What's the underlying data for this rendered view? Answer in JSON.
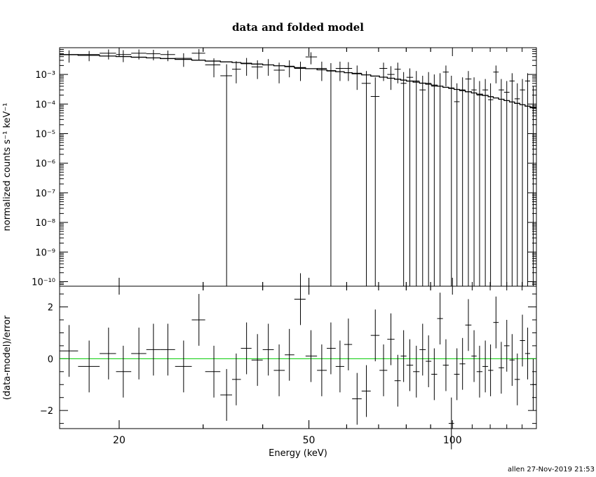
{
  "chart_data": [
    {
      "type": "scatter",
      "title": "data and folded model",
      "xlabel": "",
      "ylabel": "normalized counts s⁻¹ keV⁻¹",
      "xscale": "log",
      "yscale": "log",
      "xlim": [
        15,
        150
      ],
      "ylim": [
        7e-11,
        0.008
      ],
      "y_tick_labels": [
        "10⁻³",
        "10⁻⁴",
        "10⁻⁵",
        "10⁻⁶",
        "10⁻⁷",
        "10⁻⁸",
        "10⁻⁹",
        "10⁻¹⁰"
      ],
      "y_tick_values": [
        0.001,
        0.0001,
        1e-05,
        1e-06,
        1e-07,
        1e-08,
        1e-09,
        1e-10
      ],
      "grid": false,
      "series": [
        {
          "kind": "data",
          "points": [
            {
              "x": 15.7,
              "xlo": 15.0,
              "xhi": 16.4,
              "y": 0.0047,
              "ylo": 0.0025,
              "yhi": 0.0065
            },
            {
              "x": 17.3,
              "xlo": 16.4,
              "xhi": 18.2,
              "y": 0.0047,
              "ylo": 0.0028,
              "yhi": 0.0062
            },
            {
              "x": 19.0,
              "xlo": 18.2,
              "xhi": 19.7,
              "y": 0.0052,
              "ylo": 0.0032,
              "yhi": 0.007
            },
            {
              "x": 20.4,
              "xlo": 19.7,
              "xhi": 21.2,
              "y": 0.0047,
              "ylo": 0.0026,
              "yhi": 0.0066
            },
            {
              "x": 22.0,
              "xlo": 21.2,
              "xhi": 22.8,
              "y": 0.0052,
              "ylo": 0.0032,
              "yhi": 0.007
            },
            {
              "x": 23.6,
              "xlo": 22.8,
              "xhi": 24.4,
              "y": 0.005,
              "ylo": 0.003,
              "yhi": 0.0068
            },
            {
              "x": 25.3,
              "xlo": 24.4,
              "xhi": 26.2,
              "y": 0.0047,
              "ylo": 0.0028,
              "yhi": 0.0064
            },
            {
              "x": 27.3,
              "xlo": 26.2,
              "xhi": 28.4,
              "y": 0.0035,
              "ylo": 0.0018,
              "yhi": 0.0052
            },
            {
              "x": 29.4,
              "xlo": 28.4,
              "xhi": 30.3,
              "y": 0.0052,
              "ylo": 0.003,
              "yhi": 0.0072
            },
            {
              "x": 31.6,
              "xlo": 30.3,
              "xhi": 32.6,
              "y": 0.0021,
              "ylo": 0.0008,
              "yhi": 0.0035
            },
            {
              "x": 33.6,
              "xlo": 32.6,
              "xhi": 34.5,
              "y": 0.0009,
              "ylo": 1e-20,
              "yhi": 0.0022
            },
            {
              "x": 35.2,
              "xlo": 34.5,
              "xhi": 36.0,
              "y": 0.0015,
              "ylo": 0.0005,
              "yhi": 0.0028
            },
            {
              "x": 37.0,
              "xlo": 36.0,
              "xhi": 37.9,
              "y": 0.0023,
              "ylo": 0.0009,
              "yhi": 0.0036
            },
            {
              "x": 39.0,
              "xlo": 37.9,
              "xhi": 40.0,
              "y": 0.0018,
              "ylo": 0.0007,
              "yhi": 0.003
            },
            {
              "x": 41.1,
              "xlo": 40.0,
              "xhi": 42.2,
              "y": 0.0021,
              "ylo": 0.0009,
              "yhi": 0.0033
            },
            {
              "x": 43.3,
              "xlo": 42.2,
              "xhi": 44.5,
              "y": 0.0014,
              "ylo": 0.0005,
              "yhi": 0.0025
            },
            {
              "x": 45.5,
              "xlo": 44.5,
              "xhi": 46.6,
              "y": 0.0019,
              "ylo": 0.0008,
              "yhi": 0.003
            },
            {
              "x": 48.0,
              "xlo": 46.6,
              "xhi": 49.2,
              "y": 0.0016,
              "ylo": 0.0006,
              "yhi": 0.0027
            },
            {
              "x": 50.5,
              "xlo": 49.2,
              "xhi": 52.0,
              "y": 0.0039,
              "ylo": 0.0022,
              "yhi": 0.0056
            },
            {
              "x": 53.2,
              "xlo": 52.0,
              "xhi": 54.5,
              "y": 0.0016,
              "ylo": 0.0006,
              "yhi": 0.0027
            },
            {
              "x": 55.6,
              "xlo": 54.5,
              "xhi": 56.9,
              "y": 0.0013,
              "ylo": 1e-20,
              "yhi": 0.0024
            },
            {
              "x": 58.1,
              "xlo": 56.9,
              "xhi": 59.3,
              "y": 0.0016,
              "ylo": 0.0006,
              "yhi": 0.0027
            },
            {
              "x": 60.5,
              "xlo": 59.3,
              "xhi": 61.6,
              "y": 0.0016,
              "ylo": 0.0006,
              "yhi": 0.0026
            },
            {
              "x": 63.1,
              "xlo": 61.6,
              "xhi": 64.5,
              "y": 0.0011,
              "ylo": 0.0003,
              "yhi": 0.002
            },
            {
              "x": 66.0,
              "xlo": 64.5,
              "xhi": 67.4,
              "y": 0.0005,
              "ylo": 1e-20,
              "yhi": 0.0013
            },
            {
              "x": 68.9,
              "xlo": 67.4,
              "xhi": 70.3,
              "y": 0.00018,
              "ylo": 1e-20,
              "yhi": 0.0008
            },
            {
              "x": 71.7,
              "xlo": 70.3,
              "xhi": 73.0,
              "y": 0.0016,
              "ylo": 0.0006,
              "yhi": 0.0025
            },
            {
              "x": 74.3,
              "xlo": 73.0,
              "xhi": 75.6,
              "y": 0.001,
              "ylo": 0.0003,
              "yhi": 0.0019
            },
            {
              "x": 76.8,
              "xlo": 75.6,
              "xhi": 77.9,
              "y": 0.0015,
              "ylo": 0.0005,
              "yhi": 0.0025
            },
            {
              "x": 79.0,
              "xlo": 77.9,
              "xhi": 80.1,
              "y": 0.0005,
              "ylo": 1e-20,
              "yhi": 0.0012
            },
            {
              "x": 81.4,
              "xlo": 80.1,
              "xhi": 82.7,
              "y": 0.0008,
              "ylo": 1e-20,
              "yhi": 0.0016
            },
            {
              "x": 84.0,
              "xlo": 82.7,
              "xhi": 85.3,
              "y": 0.0006,
              "ylo": 1e-20,
              "yhi": 0.0013
            },
            {
              "x": 86.6,
              "xlo": 85.3,
              "xhi": 87.9,
              "y": 0.0003,
              "ylo": 1e-20,
              "yhi": 0.0009
            },
            {
              "x": 89.1,
              "xlo": 87.9,
              "xhi": 90.3,
              "y": 0.0005,
              "ylo": 1e-20,
              "yhi": 0.0012
            },
            {
              "x": 91.6,
              "xlo": 90.3,
              "xhi": 92.9,
              "y": 0.0004,
              "ylo": 1e-20,
              "yhi": 0.001
            },
            {
              "x": 94.2,
              "xlo": 92.9,
              "xhi": 95.5,
              "y": 0.0004,
              "ylo": 1e-20,
              "yhi": 0.0011
            },
            {
              "x": 96.9,
              "xlo": 95.5,
              "xhi": 98.2,
              "y": 0.0012,
              "ylo": 0.0004,
              "yhi": 0.002
            },
            {
              "x": 99.5,
              "xlo": 98.2,
              "xhi": 100.8,
              "y": 0.00035,
              "ylo": 1e-20,
              "yhi": 0.0009
            },
            {
              "x": 102.2,
              "xlo": 100.8,
              "xhi": 103.5,
              "y": 0.00012,
              "ylo": 1e-20,
              "yhi": 0.0005
            },
            {
              "x": 105.0,
              "xlo": 103.5,
              "xhi": 106.4,
              "y": 0.0003,
              "ylo": 1e-20,
              "yhi": 0.0008
            },
            {
              "x": 108.0,
              "xlo": 106.4,
              "xhi": 109.6,
              "y": 0.0007,
              "ylo": 1e-20,
              "yhi": 0.0013
            },
            {
              "x": 111.0,
              "xlo": 109.6,
              "xhi": 112.4,
              "y": 0.0003,
              "ylo": 1e-20,
              "yhi": 0.0008
            },
            {
              "x": 114.0,
              "xlo": 112.4,
              "xhi": 115.6,
              "y": 0.0002,
              "ylo": 1e-20,
              "yhi": 0.0006
            },
            {
              "x": 117.2,
              "xlo": 115.6,
              "xhi": 118.8,
              "y": 0.0003,
              "ylo": 1e-20,
              "yhi": 0.0007
            },
            {
              "x": 120.2,
              "xlo": 118.8,
              "xhi": 121.8,
              "y": 0.00014,
              "ylo": 1e-20,
              "yhi": 0.0005
            },
            {
              "x": 123.4,
              "xlo": 121.8,
              "xhi": 125.0,
              "y": 0.0012,
              "ylo": 0.0005,
              "yhi": 0.002
            },
            {
              "x": 126.6,
              "xlo": 125.0,
              "xhi": 128.3,
              "y": 0.0003,
              "ylo": 1e-20,
              "yhi": 0.0007
            },
            {
              "x": 130.0,
              "xlo": 128.3,
              "xhi": 131.7,
              "y": 0.00025,
              "ylo": 1e-20,
              "yhi": 0.0006
            },
            {
              "x": 133.4,
              "xlo": 131.7,
              "xhi": 135.0,
              "y": 0.0006,
              "ylo": 1e-20,
              "yhi": 0.0011
            },
            {
              "x": 136.8,
              "xlo": 135.0,
              "xhi": 138.5,
              "y": 0.00015,
              "ylo": 1e-20,
              "yhi": 0.0005
            },
            {
              "x": 140.2,
              "xlo": 138.5,
              "xhi": 142.0,
              "y": 0.0003,
              "ylo": 1e-20,
              "yhi": 0.0007
            },
            {
              "x": 143.8,
              "xlo": 142.0,
              "xhi": 145.5,
              "y": 0.0006,
              "ylo": 1e-20,
              "yhi": 0.0011
            },
            {
              "x": 147.7,
              "xlo": 145.5,
              "xhi": 150.0,
              "y": 8e-05,
              "ylo": 1e-20,
              "yhi": 0.0004
            }
          ]
        },
        {
          "kind": "model",
          "model": {
            "amplitude": 0.0049,
            "e_fold_keV": 32,
            "e_fold_start_keV": 14
          }
        }
      ]
    },
    {
      "type": "scatter",
      "title": "",
      "xlabel": "Energy (keV)",
      "ylabel": "(data-model)/error",
      "xscale": "log",
      "xlim": [
        15,
        150
      ],
      "ylim": [
        -2.7,
        2.8
      ],
      "y_tick_labels": [
        "2",
        "0",
        "−2"
      ],
      "y_tick_values": [
        2,
        0,
        -2
      ],
      "x_tick_labels": [
        "20",
        "50",
        "100"
      ],
      "x_tick_values": [
        20,
        50,
        100
      ],
      "reference_line": {
        "y": 0,
        "color": "#00cc00"
      },
      "residuals": [
        0.3,
        -0.3,
        0.2,
        -0.5,
        0.2,
        0.35,
        0.35,
        -0.3,
        1.5,
        -0.5,
        -1.4,
        -0.8,
        0.4,
        -0.05,
        0.35,
        -0.45,
        0.15,
        2.3,
        0.1,
        -0.45,
        0.4,
        -0.3,
        0.55,
        -1.55,
        -1.25,
        0.9,
        -0.45,
        0.75,
        -0.85,
        0.1,
        -0.25,
        -0.5,
        0.35,
        -0.1,
        -0.6,
        1.55,
        -0.25,
        -2.5,
        -0.6,
        -0.2,
        1.3,
        0.1,
        -0.5,
        -0.3,
        -0.45,
        1.4,
        -0.35,
        0.5,
        -0.05,
        -0.8,
        0.7,
        0.2,
        -1.0
      ],
      "residual_halfwidths": [
        1.0,
        1.0,
        1.0,
        1.0,
        1.0,
        1.0,
        1.0,
        1.0,
        1.0,
        1.0,
        1.0,
        1.0,
        1.0,
        1.0,
        1.0,
        1.0,
        1.0,
        1.0,
        1.0,
        1.0,
        1.0,
        1.0,
        1.0,
        1.0,
        1.0,
        1.0,
        1.0,
        1.0,
        1.0,
        1.0,
        1.0,
        1.0,
        1.0,
        1.0,
        1.0,
        1.0,
        1.0,
        1.0,
        1.0,
        1.0,
        1.0,
        1.0,
        1.0,
        1.0,
        1.0,
        1.0,
        1.0,
        1.0,
        1.0,
        1.0,
        1.0,
        1.0,
        1.0
      ]
    }
  ],
  "footer": "allen 27-Nov-2019 21:53"
}
